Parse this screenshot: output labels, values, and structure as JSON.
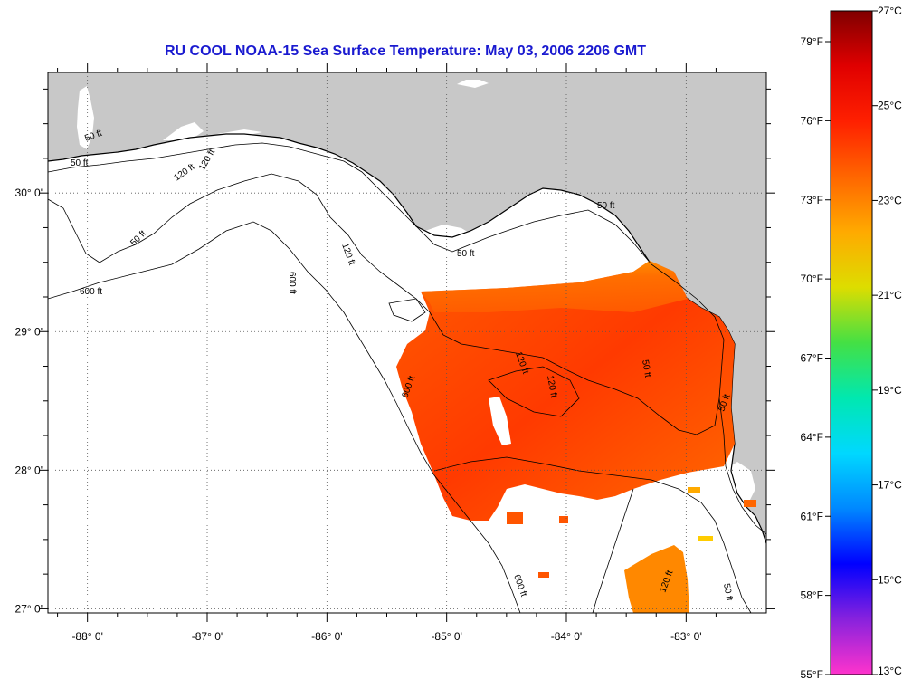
{
  "title": "RU COOL  NOAA-15  Sea Surface Temperature:  May 03, 2006 2206 GMT",
  "map": {
    "lon_range": [
      -88.33,
      -82.33
    ],
    "lat_range": [
      26.97,
      30.87
    ],
    "lon_ticks": [
      {
        "value": -88,
        "label": "-88° 0'"
      },
      {
        "value": -87,
        "label": "-87° 0'"
      },
      {
        "value": -86,
        "label": "-86° 0'"
      },
      {
        "value": -85,
        "label": "-85° 0'"
      },
      {
        "value": -84,
        "label": "-84° 0'"
      },
      {
        "value": -83,
        "label": "-83° 0'"
      }
    ],
    "lat_ticks": [
      {
        "value": 30,
        "label": "30° 0'"
      },
      {
        "value": 29,
        "label": "29° 0'"
      },
      {
        "value": 28,
        "label": "28° 0'"
      },
      {
        "value": 27,
        "label": "27° 0'"
      }
    ],
    "contour_labels": [
      "50 ft",
      "50 ft",
      "120 ft",
      "120 ft",
      "50 ft",
      "600 ft",
      "600 ft",
      "120 ft",
      "50 ft",
      "50 ft",
      "120 ft",
      "600 ft",
      "50 ft",
      "120 ft",
      "50 ft",
      "600 ft",
      "120 ft",
      "50 ft"
    ],
    "land_color": "#c8c8c8",
    "ocean_color": "#ffffff"
  },
  "colorbar": {
    "fahrenheit": [
      "79°F",
      "76°F",
      "73°F",
      "70°F",
      "67°F",
      "64°F",
      "61°F",
      "58°F",
      "55°F"
    ],
    "celsius": [
      "27°C",
      "25°C",
      "23°C",
      "21°C",
      "19°C",
      "17°C",
      "15°C",
      "13°C"
    ],
    "gradient": [
      "#ff33cc",
      "#8822dd",
      "#0000ff",
      "#0088ff",
      "#00d8ff",
      "#00e8b0",
      "#44e044",
      "#dddd00",
      "#ffaa00",
      "#ff6600",
      "#ff2000",
      "#e00000",
      "#800000"
    ]
  }
}
